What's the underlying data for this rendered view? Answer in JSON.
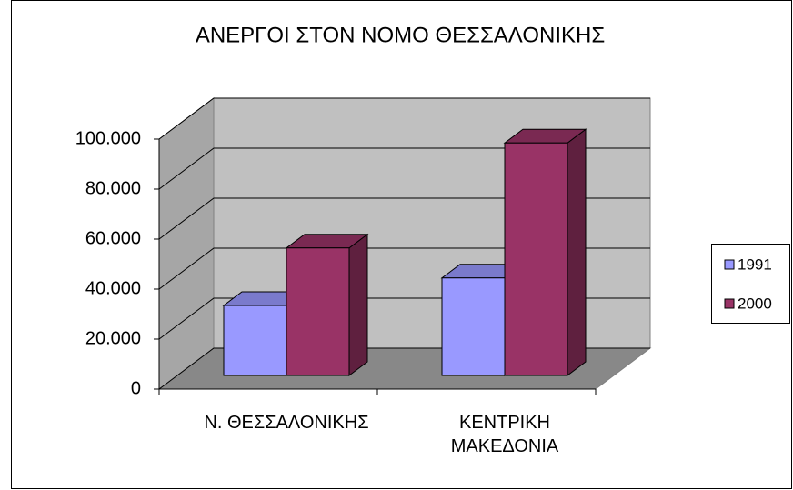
{
  "chart_data": {
    "type": "bar3d",
    "title": "ΑΝΕΡΓΟΙ ΣΤΟΝ ΝΟΜΟ ΘΕΣΣΑΛΟΝΙΚΗΣ",
    "categories": [
      "Ν. ΘΕΣΣΑΛΟΝΙΚΗΣ",
      "ΚΕΝΤΡΙΚΗ\nΜΑΚΕΔΟΝΙΑ"
    ],
    "series": [
      {
        "name": "1991",
        "color": "#9999ff",
        "values": [
          28000,
          39000
        ]
      },
      {
        "name": "2000",
        "color": "#993366",
        "values": [
          51000,
          93000
        ]
      }
    ],
    "ylim": [
      0,
      100000
    ],
    "yticks": [
      0,
      {
        "value": 20000,
        "label": "20.000"
      },
      {
        "value": 40000,
        "label": "40.000"
      },
      {
        "value": 60000,
        "label": "60.000"
      },
      {
        "value": 80000,
        "label": "80.000"
      },
      {
        "value": 100000,
        "label": "100.000"
      }
    ],
    "grid": true,
    "legend": "right"
  }
}
